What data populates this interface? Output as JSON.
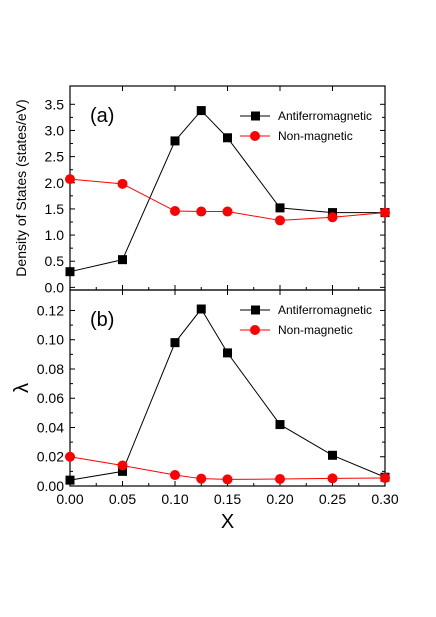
{
  "colors": {
    "antiferromagnetic": "#000000",
    "non_magnetic": "#ff0000",
    "axes": "#000000",
    "background": "#ffffff"
  },
  "chart_data": [
    {
      "type": "line",
      "panel_label": "(a)",
      "ylabel": "Density of States (states/eV)",
      "xlabel": "",
      "xlim": [
        0.0,
        0.3
      ],
      "ylim": [
        -0.05,
        3.85
      ],
      "yticks": [
        0.0,
        0.5,
        1.0,
        1.5,
        2.0,
        2.5,
        3.0,
        3.5
      ],
      "ytick_labels": [
        "0.0",
        "0.5",
        "1.0",
        "1.5",
        "2.0",
        "2.5",
        "3.0",
        "3.5"
      ],
      "legend_position": "top-right",
      "series": [
        {
          "name": "Antiferromagnetic",
          "marker": "square",
          "color": "#000000",
          "x": [
            0.0,
            0.05,
            0.1,
            0.125,
            0.15,
            0.2,
            0.25,
            0.3
          ],
          "y": [
            0.3,
            0.53,
            2.8,
            3.38,
            2.86,
            1.52,
            1.43,
            1.43
          ]
        },
        {
          "name": "Non-magnetic",
          "marker": "circle",
          "color": "#ff0000",
          "x": [
            0.0,
            0.05,
            0.1,
            0.125,
            0.15,
            0.2,
            0.25,
            0.3
          ],
          "y": [
            2.07,
            1.98,
            1.46,
            1.45,
            1.45,
            1.28,
            1.34,
            1.43
          ]
        }
      ]
    },
    {
      "type": "line",
      "panel_label": "(b)",
      "ylabel": "λ",
      "xlabel": "X",
      "xlim": [
        0.0,
        0.3
      ],
      "ylim": [
        0.0,
        0.134
      ],
      "xticks": [
        0.0,
        0.05,
        0.1,
        0.15,
        0.2,
        0.25,
        0.3
      ],
      "xtick_labels": [
        "0.00",
        "0.05",
        "0.10",
        "0.15",
        "0.20",
        "0.25",
        "0.30"
      ],
      "yticks": [
        0.0,
        0.02,
        0.04,
        0.06,
        0.08,
        0.1,
        0.12
      ],
      "ytick_labels": [
        "0.00",
        "0.02",
        "0.04",
        "0.06",
        "0.08",
        "0.10",
        "0.12"
      ],
      "legend_position": "top-right",
      "series": [
        {
          "name": "Antiferromagnetic",
          "marker": "square",
          "color": "#000000",
          "x": [
            0.0,
            0.05,
            0.1,
            0.125,
            0.15,
            0.2,
            0.25,
            0.3
          ],
          "y": [
            0.004,
            0.01,
            0.098,
            0.121,
            0.091,
            0.042,
            0.021,
            0.006
          ]
        },
        {
          "name": "Non-magnetic",
          "marker": "circle",
          "color": "#ff0000",
          "x": [
            0.0,
            0.05,
            0.1,
            0.125,
            0.15,
            0.2,
            0.25,
            0.3
          ],
          "y": [
            0.02,
            0.014,
            0.0075,
            0.005,
            0.0045,
            0.0048,
            0.0052,
            0.0055
          ]
        }
      ]
    }
  ]
}
